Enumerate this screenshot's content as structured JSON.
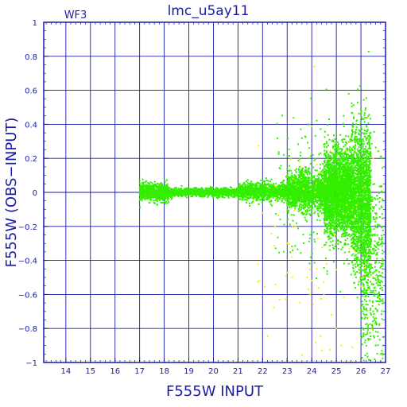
{
  "chart_data": {
    "type": "scatter",
    "title": "lmc_u5ay11",
    "corner_label": "WF3",
    "xlabel": "F555W INPUT",
    "ylabel": "F555W (OBS−INPUT)",
    "xlim": [
      13.1,
      27
    ],
    "ylim": [
      -1,
      1
    ],
    "x_ticks": [
      14,
      15,
      16,
      17,
      18,
      19,
      20,
      21,
      22,
      23,
      24,
      25,
      26,
      27
    ],
    "y_ticks": [
      1,
      0.8,
      0.6,
      0.4,
      0.2,
      0,
      -0.2,
      -0.4,
      -0.6,
      -0.8,
      -1
    ],
    "y_tick_labels": [
      "1",
      "0.8",
      "0.6",
      "0.4",
      "0.2",
      "0",
      "−0.2",
      "−0.4",
      "−0.6",
      "−0.8",
      "−1"
    ],
    "grid": true,
    "series": [
      {
        "color": "#33ee00",
        "points": [
          [
            17.0,
            0.0
          ],
          [
            17.5,
            0.02
          ],
          [
            18.0,
            -0.02
          ],
          [
            19.0,
            0.0
          ],
          [
            20.0,
            0.0
          ],
          [
            21.0,
            0.01
          ],
          [
            22.0,
            0.0
          ],
          [
            23.0,
            0.02
          ],
          [
            23.5,
            0.15
          ],
          [
            24.0,
            0.08
          ],
          [
            24.0,
            -0.12
          ],
          [
            24.5,
            0.28
          ],
          [
            24.5,
            -0.2
          ],
          [
            25.0,
            0.35
          ],
          [
            25.0,
            -0.3
          ],
          [
            25.3,
            0.45
          ],
          [
            25.5,
            0.58
          ],
          [
            25.5,
            -0.42
          ],
          [
            25.8,
            0.4
          ],
          [
            25.8,
            -0.5
          ],
          [
            26.0,
            0.3
          ],
          [
            26.0,
            -0.4
          ],
          [
            26.2,
            -0.6
          ],
          [
            26.3,
            -0.8
          ],
          [
            26.5,
            -0.7
          ],
          [
            26.6,
            -0.9
          ],
          [
            26.8,
            -0.95
          ],
          [
            26.4,
            -0.3
          ]
        ],
        "density": [
          {
            "x": [
              17.0,
              18.2
            ],
            "y_center": 0.0,
            "spread": 0.025,
            "count": 700
          },
          {
            "x": [
              18.2,
              21.0
            ],
            "y_center": 0.0,
            "spread": 0.012,
            "count": 1100
          },
          {
            "x": [
              21.0,
              23.0
            ],
            "y_center": 0.005,
            "spread": 0.025,
            "count": 1000
          },
          {
            "x": [
              23.0,
              24.5
            ],
            "y_center": 0.005,
            "spread": 0.055,
            "count": 1400
          },
          {
            "x": [
              24.5,
              25.6
            ],
            "y_center": 0.0,
            "spread": 0.12,
            "count": 2600
          },
          {
            "x": [
              25.6,
              26.4
            ],
            "y_center": -0.03,
            "spread": 0.2,
            "count": 1800
          },
          {
            "x": [
              26.0,
              26.9
            ],
            "y_center": -0.45,
            "spread": 0.3,
            "count": 500
          },
          {
            "x": [
              22.5,
              26.5
            ],
            "y_center": 0.0,
            "spread": 0.22,
            "count": 250
          }
        ]
      },
      {
        "color": "#ffee00",
        "points": [
          [
            22.0,
            -0.12
          ],
          [
            22.5,
            -0.2
          ],
          [
            23.0,
            -0.3
          ],
          [
            23.2,
            -0.38
          ],
          [
            23.8,
            -0.5
          ],
          [
            24.2,
            -0.45
          ],
          [
            24.5,
            -0.6
          ],
          [
            24.8,
            -0.72
          ],
          [
            25.0,
            -0.8
          ],
          [
            25.2,
            -0.9
          ],
          [
            23.5,
            0.18
          ],
          [
            24.3,
            0.12
          ],
          [
            25.5,
            0.3
          ],
          [
            26.1,
            -0.5
          ],
          [
            24.1,
            0.74
          ],
          [
            26.5,
            0.2
          ]
        ],
        "density": [
          {
            "x": [
              21.5,
              26.5
            ],
            "y_center": -0.35,
            "spread": 0.35,
            "count": 70
          }
        ]
      }
    ]
  }
}
